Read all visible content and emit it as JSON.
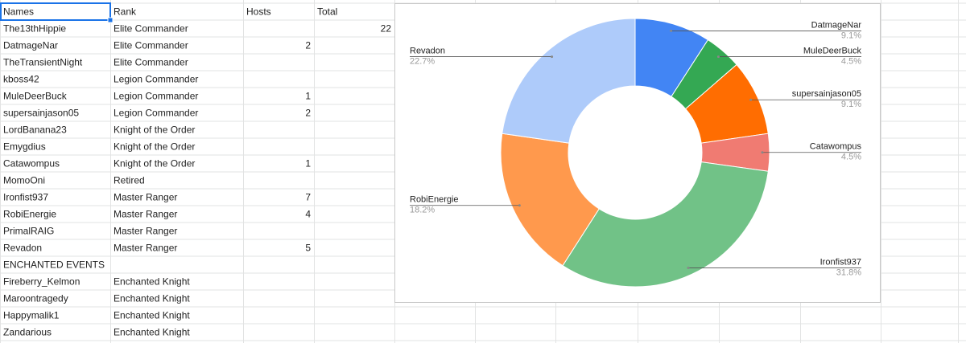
{
  "sheet": {
    "headers": [
      "Names",
      "Rank",
      "Hosts",
      "Total"
    ],
    "rows": [
      {
        "name": "The13thHippie",
        "rank": "Elite Commander",
        "total": 22
      },
      {
        "name": "DatmageNar",
        "rank": "Elite Commander",
        "hosts": 2
      },
      {
        "name": "TheTransientNight",
        "rank": "Elite Commander"
      },
      {
        "name": "kboss42",
        "rank": "Legion Commander"
      },
      {
        "name": "MuleDeerBuck",
        "rank": "Legion Commander",
        "hosts": 1
      },
      {
        "name": "supersainjason05",
        "rank": "Legion Commander",
        "hosts": 2
      },
      {
        "name": "LordBanana23",
        "rank": "Knight of the Order"
      },
      {
        "name": "Emygdius",
        "rank": "Knight of the Order"
      },
      {
        "name": "Catawompus",
        "rank": "Knight of the Order",
        "hosts": 1
      },
      {
        "name": "MomoOni",
        "rank": "Retired"
      },
      {
        "name": "Ironfist937",
        "rank": "Master Ranger",
        "hosts": 7
      },
      {
        "name": "RobiEnergie",
        "rank": "Master Ranger",
        "hosts": 4
      },
      {
        "name": "PrimalRAIG",
        "rank": "Master Ranger"
      },
      {
        "name": "Revadon",
        "rank": "Master Ranger",
        "hosts": 5
      },
      {
        "name": "ENCHANTED EVENTS"
      },
      {
        "name": "Fireberry_Kelmon",
        "rank": "Enchanted Knight"
      },
      {
        "name": "Maroontragedy",
        "rank": "Enchanted Knight"
      },
      {
        "name": "Happymalik1",
        "rank": "Enchanted Knight"
      },
      {
        "name": "Zandarious",
        "rank": "Enchanted Knight"
      }
    ]
  },
  "chart_data": {
    "type": "donut",
    "categories": [
      "DatmageNar",
      "MuleDeerBuck",
      "supersainjason05",
      "Catawompus",
      "Ironfist937",
      "RobiEnergie",
      "Revadon"
    ],
    "values": [
      9.1,
      4.5,
      9.1,
      4.5,
      31.8,
      18.2,
      22.7
    ],
    "value_labels": [
      "9.1%",
      "4.5%",
      "9.1%",
      "4.5%",
      "31.8%",
      "18.2%",
      "22.7%"
    ],
    "colors": [
      "#4285f4",
      "#34a853",
      "#ff6d01",
      "#f07b72",
      "#71c287",
      "#ff994d",
      "#aecbfa"
    ]
  }
}
